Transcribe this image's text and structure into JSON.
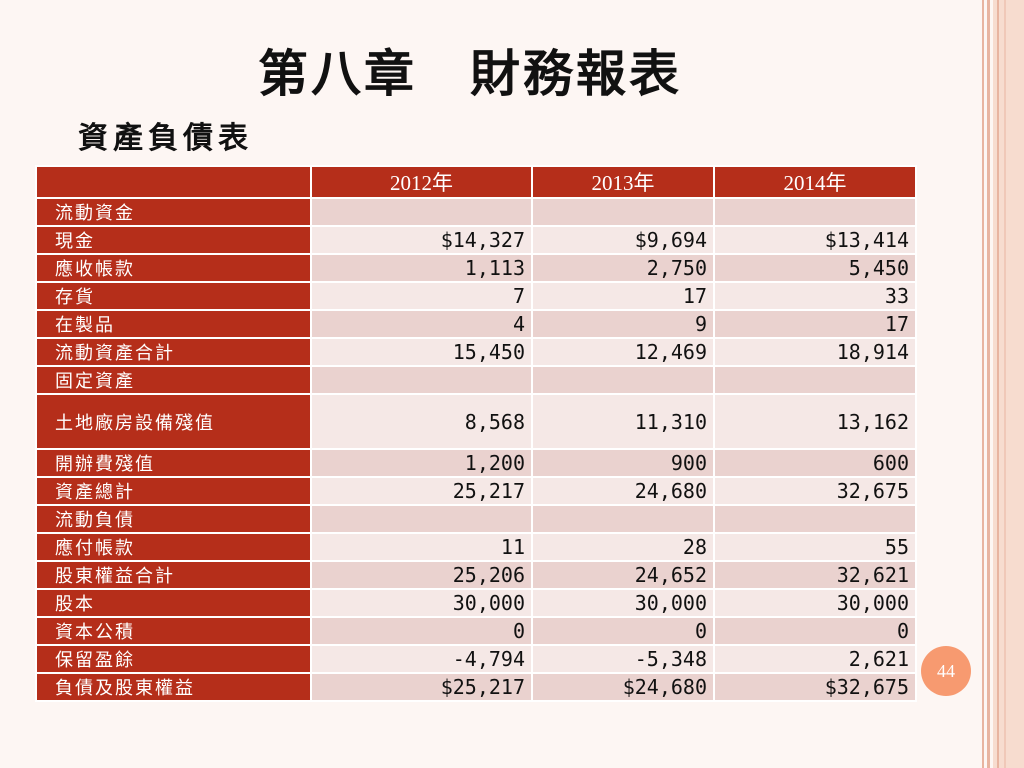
{
  "title": "第八章　財務報表",
  "subtitle": "資產負債表",
  "table": {
    "headers": [
      "",
      "2012年",
      "2013年",
      "2014年"
    ],
    "rows": [
      {
        "label": "流動資金",
        "values": [
          "",
          "",
          ""
        ]
      },
      {
        "label": "現金",
        "values": [
          "$14,327",
          "$9,694",
          "$13,414"
        ]
      },
      {
        "label": "應收帳款",
        "values": [
          "1,113",
          "2,750",
          "5,450"
        ]
      },
      {
        "label": "存貨",
        "values": [
          "7",
          "17",
          "33"
        ]
      },
      {
        "label": "在製品",
        "values": [
          "4",
          "9",
          "17"
        ]
      },
      {
        "label": "流動資產合計",
        "values": [
          "15,450",
          "12,469",
          "18,914"
        ]
      },
      {
        "label": "固定資產",
        "values": [
          "",
          "",
          ""
        ]
      },
      {
        "label": "土地廠房設備殘值",
        "values": [
          "8,568",
          "11,310",
          "13,162"
        ]
      },
      {
        "label": "開辦費殘值",
        "values": [
          "1,200",
          "900",
          "600"
        ]
      },
      {
        "label": "資產總計",
        "values": [
          "25,217",
          "24,680",
          "32,675"
        ]
      },
      {
        "label": "流動負債",
        "values": [
          "",
          "",
          ""
        ]
      },
      {
        "label": "應付帳款",
        "values": [
          "11",
          "28",
          "55"
        ]
      },
      {
        "label": "股東權益合計",
        "values": [
          "25,206",
          "24,652",
          "32,621"
        ]
      },
      {
        "label": "股本",
        "values": [
          "30,000",
          "30,000",
          "30,000"
        ]
      },
      {
        "label": "資本公積",
        "values": [
          "0",
          "0",
          "0"
        ]
      },
      {
        "label": "保留盈餘",
        "values": [
          "-4,794",
          "-5,348",
          "2,621"
        ]
      },
      {
        "label": "負債及股東權益",
        "values": [
          "$25,217",
          "$24,680",
          "$32,675"
        ]
      }
    ]
  },
  "page_number": "44",
  "colors": {
    "header_fill": "#b52e1a",
    "row_odd": "#ead2cf",
    "row_even": "#f5e8e6",
    "badge": "#f79a70",
    "background": "#fdf6f3"
  }
}
